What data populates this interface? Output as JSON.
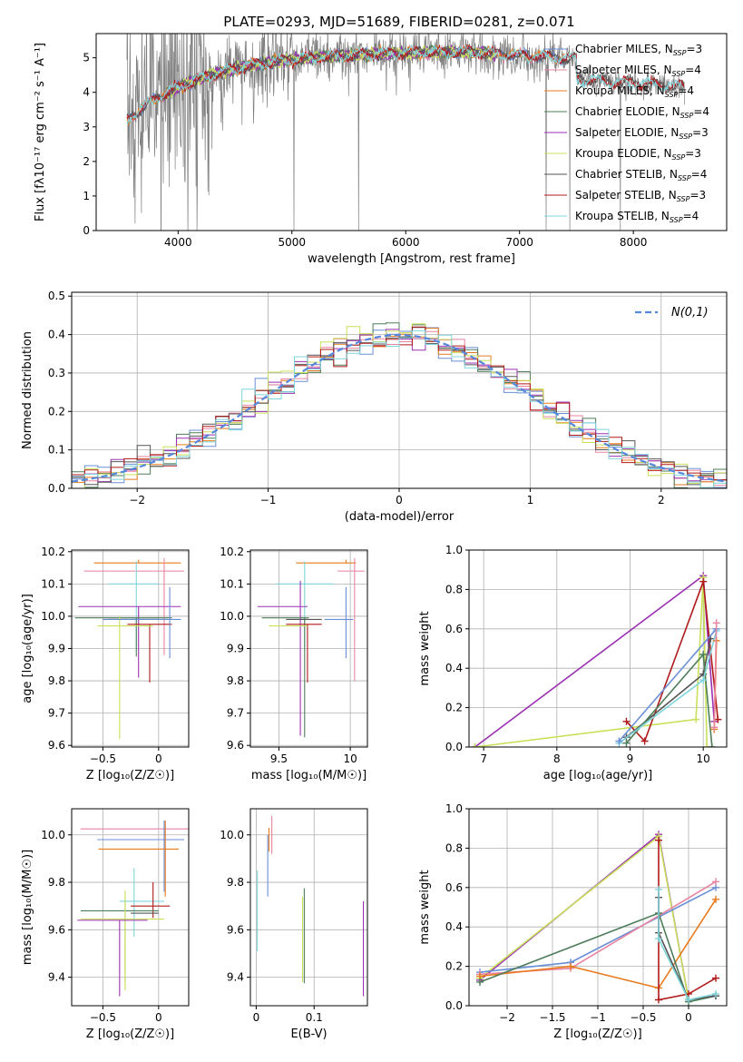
{
  "title": "PLATE=0293, MJD=51689, FIBERID=0281, z=0.071",
  "chart_data": [
    {
      "id": "spectrum",
      "type": "line",
      "title": "PLATE=0293, MJD=51689, FIBERID=0281, z=0.071",
      "xlabel": "wavelength [Angstrom, rest frame]",
      "ylabel": "Flux [f_λ 10^-17 erg cm^-2 s^-1 A^-1]",
      "xlim": [
        3280,
        8820
      ],
      "ylim": [
        0,
        5.7
      ],
      "xticks": [
        4000,
        5000,
        6000,
        7000,
        8000
      ],
      "yticks": [
        0,
        1,
        2,
        3,
        4,
        5
      ],
      "legend_position": "top-right",
      "grid": false,
      "data_series": {
        "name": "data",
        "color": "#808080",
        "x_range": [
          3550,
          8450
        ]
      },
      "series": [
        {
          "name": "Chabrier MILES",
          "nssp": "3",
          "color": "#6a8fd6",
          "x_range": [
            3550,
            7400
          ]
        },
        {
          "name": "Salpeter MILES",
          "nssp": "4",
          "color": "#e8849f",
          "x_range": [
            3550,
            7400
          ]
        },
        {
          "name": "Kroupa MILES",
          "nssp": "4",
          "color": "#e87a1c",
          "x_range": [
            3550,
            7400
          ]
        },
        {
          "name": "Chabrier ELODIE",
          "nssp": "4",
          "color": "#4e7d5a",
          "x_range": [
            3900,
            6800
          ]
        },
        {
          "name": "Salpeter ELODIE",
          "nssp": "3",
          "color": "#9b30b0",
          "x_range": [
            3900,
            6800
          ]
        },
        {
          "name": "Kroupa ELODIE",
          "nssp": "3",
          "color": "#c8e05a",
          "x_range": [
            3900,
            6800
          ]
        },
        {
          "name": "Chabrier STELIB",
          "nssp": "4",
          "color": "#555555",
          "x_range": [
            3550,
            8450
          ]
        },
        {
          "name": "Salpeter STELIB",
          "nssp": "3",
          "color": "#b01a1a",
          "x_range": [
            3550,
            8450
          ]
        },
        {
          "name": "Kroupa STELIB",
          "nssp": "4",
          "color": "#7fd5dc",
          "x_range": [
            3550,
            8450
          ]
        }
      ],
      "legend_nssp_prefix": "N",
      "legend_nssp_sub": "SSP"
    },
    {
      "id": "residuals",
      "type": "line",
      "xlabel": "(data-model)/error",
      "ylabel": "Normed distribution",
      "xlim": [
        -2.5,
        2.5
      ],
      "ylim": [
        0,
        0.51
      ],
      "xticks": [
        -2,
        -1,
        0,
        1,
        2
      ],
      "yticks": [
        0.0,
        0.1,
        0.2,
        0.3,
        0.4,
        0.5
      ],
      "grid": true,
      "legend_position": "top-right",
      "gaussian": {
        "label": "N(0,1)",
        "mean": 0,
        "sigma": 1,
        "color": "#5588dd"
      },
      "histogram_series_colors": [
        "#6a8fd6",
        "#e8849f",
        "#e87a1c",
        "#4e7d5a",
        "#9b30b0",
        "#c8e05a",
        "#555555",
        "#b01a1a",
        "#7fd5dc"
      ]
    },
    {
      "id": "age_vs_Z",
      "type": "scatter",
      "xlabel": "Z [log10(Z/Z☉)]",
      "ylabel": "age [log10(age/yr)]",
      "xlim": [
        -0.78,
        0.27
      ],
      "ylim": [
        9.595,
        10.205
      ],
      "xticks": [
        -0.5,
        0.0
      ],
      "yticks": [
        9.6,
        9.7,
        9.8,
        9.9,
        10.0,
        10.1,
        10.2
      ],
      "grid": true,
      "errorbars": [
        {
          "x": -0.18,
          "y": 10.165,
          "xerr": [
            0.4,
            0.38
          ],
          "yerr": [
            0.0,
            0.01
          ],
          "color": "#e87a1c"
        },
        {
          "x": 0.05,
          "y": 10.14,
          "xerr": [
            0.72,
            0.18
          ],
          "yerr": [
            0.26,
            0.04
          ],
          "color": "#e8849f"
        },
        {
          "x": -0.2,
          "y": 10.1,
          "xerr": [
            0.25,
            0.2
          ],
          "yerr": [
            0.2,
            0.07
          ],
          "color": "#7fd5dc"
        },
        {
          "x": -0.18,
          "y": 10.03,
          "xerr": [
            0.54,
            0.38
          ],
          "yerr": [
            0.22,
            0.0
          ],
          "color": "#9b30b0"
        },
        {
          "x": -0.2,
          "y": 9.995,
          "xerr": [
            0.55,
            0.32
          ],
          "yerr": [
            0.12,
            0.0
          ],
          "color": "#4e7d5a"
        },
        {
          "x": -0.2,
          "y": 9.99,
          "xerr": [
            0.25,
            0.2
          ],
          "yerr": [
            0.0,
            0.0
          ],
          "color": "#555555"
        },
        {
          "x": -0.08,
          "y": 9.975,
          "xerr": [
            0.2,
            0.2
          ],
          "yerr": [
            0.18,
            0.0
          ],
          "color": "#b01a1a"
        },
        {
          "x": -0.35,
          "y": 9.97,
          "xerr": [
            0.2,
            0.3
          ],
          "yerr": [
            0.35,
            0.03
          ],
          "color": "#c8e05a"
        },
        {
          "x": 0.1,
          "y": 9.99,
          "xerr": [
            0.6,
            0.1
          ],
          "yerr": [
            0.12,
            0.1
          ],
          "color": "#6a8fd6"
        }
      ]
    },
    {
      "id": "age_vs_mass",
      "type": "scatter",
      "xlabel": "mass [log10(M/M☉)]",
      "ylabel": "",
      "xlim": [
        9.3,
        10.12
      ],
      "ylim": [
        9.595,
        10.205
      ],
      "xticks": [
        9.5,
        10.0
      ],
      "yticks": [
        9.6,
        9.7,
        9.8,
        9.9,
        10.0,
        10.1,
        10.2
      ],
      "grid": true,
      "errorbars": [
        {
          "x": 9.97,
          "y": 10.165,
          "xerr": [
            0.35,
            0.07
          ],
          "yerr": [
            0.0,
            0.01
          ],
          "color": "#e87a1c"
        },
        {
          "x": 10.03,
          "y": 10.14,
          "xerr": [
            0.12,
            0.07
          ],
          "yerr": [
            0.34,
            0.04
          ],
          "color": "#e8849f"
        },
        {
          "x": 9.68,
          "y": 10.1,
          "xerr": [
            0.2,
            0.2
          ],
          "yerr": [
            0.2,
            0.07
          ],
          "color": "#7fd5dc"
        },
        {
          "x": 9.65,
          "y": 10.03,
          "xerr": [
            0.3,
            0.05
          ],
          "yerr": [
            0.4,
            0.08
          ],
          "color": "#9b30b0"
        },
        {
          "x": 9.68,
          "y": 9.995,
          "xerr": [
            0.3,
            0.03
          ],
          "yerr": [
            0.37,
            0.0
          ],
          "color": "#4e7d5a"
        },
        {
          "x": 9.7,
          "y": 9.99,
          "xerr": [
            0.15,
            0.1
          ],
          "yerr": [
            0.0,
            0.0
          ],
          "color": "#555555"
        },
        {
          "x": 9.7,
          "y": 9.975,
          "xerr": [
            0.15,
            0.1
          ],
          "yerr": [
            0.18,
            0.0
          ],
          "color": "#b01a1a"
        },
        {
          "x": 9.6,
          "y": 9.97,
          "xerr": [
            0.17,
            0.1
          ],
          "yerr": [
            0.0,
            0.0
          ],
          "color": "#c8e05a"
        },
        {
          "x": 9.97,
          "y": 9.99,
          "xerr": [
            0.15,
            0.05
          ],
          "yerr": [
            0.12,
            0.1
          ],
          "color": "#6a8fd6"
        }
      ]
    },
    {
      "id": "weight_vs_age",
      "type": "line",
      "xlabel": "age [log10(age/yr)]",
      "ylabel": "mass weight",
      "xlim": [
        6.8,
        10.32
      ],
      "ylim": [
        0,
        1.0
      ],
      "xticks": [
        7,
        8,
        9,
        10
      ],
      "yticks": [
        0.0,
        0.2,
        0.4,
        0.6,
        0.8,
        1.0
      ],
      "grid": true,
      "series": [
        {
          "name": "Salpeter ELODIE",
          "color": "#9b30b0",
          "x": [
            6.88,
            10.0,
            10.15
          ],
          "y": [
            0.0,
            0.87,
            0.13
          ]
        },
        {
          "name": "Kroupa ELODIE",
          "color": "#c8e05a",
          "x": [
            6.88,
            9.9,
            10.0,
            10.05
          ],
          "y": [
            0.0,
            0.14,
            0.86,
            0.0
          ]
        },
        {
          "name": "Salpeter STELIB",
          "color": "#b01a1a",
          "x": [
            8.95,
            9.2,
            10.0,
            10.2
          ],
          "y": [
            0.13,
            0.03,
            0.84,
            0.14
          ]
        },
        {
          "name": "Chabrier STELIB",
          "color": "#555555",
          "x": [
            8.95,
            10.0,
            10.1
          ],
          "y": [
            0.05,
            0.37,
            0.55
          ]
        },
        {
          "name": "Chabrier ELODIE",
          "color": "#4e7d5a",
          "x": [
            8.95,
            10.0,
            10.12
          ],
          "y": [
            0.02,
            0.47,
            0.0
          ]
        },
        {
          "name": "Kroupa STELIB",
          "color": "#7fd5dc",
          "x": [
            8.85,
            10.0,
            10.18
          ],
          "y": [
            0.02,
            0.34,
            0.59
          ]
        },
        {
          "name": "Chabrier MILES",
          "color": "#6a8fd6",
          "x": [
            8.85,
            10.18
          ],
          "y": [
            0.03,
            0.6
          ]
        },
        {
          "name": "Kroupa MILES",
          "color": "#e87a1c",
          "x": [
            10.15,
            10.18
          ],
          "y": [
            0.09,
            0.54
          ]
        },
        {
          "name": "Salpeter MILES",
          "color": "#e8849f",
          "x": [
            10.15,
            10.18
          ],
          "y": [
            0.1,
            0.63
          ]
        }
      ]
    },
    {
      "id": "mass_vs_Z",
      "type": "scatter",
      "xlabel": "Z [log10(Z/Z☉)]",
      "ylabel": "mass [log10(M/M☉)]",
      "xlim": [
        -0.78,
        0.27
      ],
      "ylim": [
        9.28,
        10.11
      ],
      "xticks": [
        -0.5,
        0.0
      ],
      "yticks": [
        9.4,
        9.6,
        9.8,
        10.0
      ],
      "grid": true,
      "errorbars": [
        {
          "x": -0.25,
          "y": 10.025,
          "xerr": [
            0.45,
            0.52
          ],
          "yerr": [
            0.0,
            0.0
          ],
          "color": "#e8849f"
        },
        {
          "x": 0.05,
          "y": 9.98,
          "xerr": [
            0.6,
            0.18
          ],
          "yerr": [
            0.22,
            0.08
          ],
          "color": "#6a8fd6"
        },
        {
          "x": 0.06,
          "y": 9.94,
          "xerr": [
            0.6,
            0.12
          ],
          "yerr": [
            0.2,
            0.12
          ],
          "color": "#e87a1c"
        },
        {
          "x": -0.22,
          "y": 9.72,
          "xerr": [
            0.13,
            0.27
          ],
          "yerr": [
            0.15,
            0.14
          ],
          "color": "#7fd5dc"
        },
        {
          "x": -0.05,
          "y": 9.7,
          "xerr": [
            0.2,
            0.15
          ],
          "yerr": [
            0.05,
            0.1
          ],
          "color": "#b01a1a"
        },
        {
          "x": -0.3,
          "y": 9.68,
          "xerr": [
            0.4,
            0.3
          ],
          "yerr": [
            0.3,
            0.05
          ],
          "color": "#4e7d5a"
        },
        {
          "x": -0.1,
          "y": 9.67,
          "xerr": [
            0.15,
            0.1
          ],
          "yerr": [
            0.0,
            0.0
          ],
          "color": "#555555"
        },
        {
          "x": -0.3,
          "y": 9.645,
          "xerr": [
            0.4,
            0.35
          ],
          "yerr": [
            0.3,
            0.12
          ],
          "color": "#c8e05a"
        },
        {
          "x": -0.35,
          "y": 9.64,
          "xerr": [
            0.38,
            0.25
          ],
          "yerr": [
            0.32,
            0.0
          ],
          "color": "#9b30b0"
        }
      ]
    },
    {
      "id": "mass_vs_ebv",
      "type": "scatter",
      "xlabel": "E(B-V)",
      "ylabel": "",
      "xlim": [
        -0.01,
        0.192
      ],
      "ylim": [
        9.28,
        10.11
      ],
      "xticks": [
        0.0,
        0.1
      ],
      "yticks": [
        9.4,
        9.6,
        9.8,
        10.0
      ],
      "grid": true,
      "errorbars": [
        {
          "x": 0.027,
          "y": 10.0,
          "xerr": [
            0,
            0
          ],
          "yerr": [
            0.08,
            0.08
          ],
          "color": "#e8849f"
        },
        {
          "x": 0.022,
          "y": 9.98,
          "xerr": [
            0,
            0
          ],
          "yerr": [
            0.05,
            0.05
          ],
          "color": "#e87a1c"
        },
        {
          "x": 0.02,
          "y": 9.87,
          "xerr": [
            0,
            0
          ],
          "yerr": [
            0.13,
            0.13
          ],
          "color": "#6a8fd6"
        },
        {
          "x": 0.002,
          "y": 9.68,
          "xerr": [
            0,
            0
          ],
          "yerr": [
            0.17,
            0.17
          ],
          "color": "#7fd5dc"
        },
        {
          "x": 0.08,
          "y": 9.56,
          "xerr": [
            0,
            0
          ],
          "yerr": [
            0.18,
            0.18
          ],
          "color": "#c8e05a"
        },
        {
          "x": 0.083,
          "y": 9.575,
          "xerr": [
            0,
            0
          ],
          "yerr": [
            0.2,
            0.2
          ],
          "color": "#4e7d5a"
        },
        {
          "x": 0.185,
          "y": 9.52,
          "xerr": [
            0,
            0
          ],
          "yerr": [
            0.2,
            0.2
          ],
          "color": "#9b30b0"
        }
      ]
    },
    {
      "id": "weight_vs_Z",
      "type": "line",
      "xlabel": "Z [log10(Z/Z☉)]",
      "ylabel": "mass weight",
      "xlim": [
        -2.42,
        0.42
      ],
      "ylim": [
        0,
        1.0
      ],
      "xticks": [
        -2.0,
        -1.5,
        -1.0,
        -0.5,
        0.0
      ],
      "yticks": [
        0.0,
        0.2,
        0.4,
        0.6,
        0.8,
        1.0
      ],
      "grid": true,
      "series": [
        {
          "name": "Salpeter ELODIE",
          "color": "#9b30b0",
          "x": [
            -2.3,
            -0.33,
            0.0
          ],
          "y": [
            0.13,
            0.87,
            0.03
          ]
        },
        {
          "name": "Kroupa ELODIE",
          "color": "#c8e05a",
          "x": [
            -2.3,
            -0.33,
            0.0
          ],
          "y": [
            0.14,
            0.86,
            0.03
          ]
        },
        {
          "name": "Chabrier MILES",
          "color": "#6a8fd6",
          "x": [
            -2.3,
            -1.3,
            0.3
          ],
          "y": [
            0.17,
            0.22,
            0.6
          ]
        },
        {
          "name": "Salpeter MILES",
          "color": "#e8849f",
          "x": [
            -2.3,
            -1.3,
            0.3
          ],
          "y": [
            0.16,
            0.19,
            0.63
          ]
        },
        {
          "name": "Kroupa MILES",
          "color": "#e87a1c",
          "x": [
            -2.3,
            -1.3,
            -0.33,
            0.3
          ],
          "y": [
            0.15,
            0.2,
            0.09,
            0.54
          ]
        },
        {
          "name": "Chabrier ELODIE",
          "color": "#4e7d5a",
          "x": [
            -2.3,
            -0.33,
            0.0,
            0.3
          ],
          "y": [
            0.12,
            0.47,
            0.02,
            0.05
          ]
        },
        {
          "name": "Salpeter STELIB",
          "color": "#b01a1a",
          "x": [
            -0.33,
            -0.33,
            0.0,
            0.3
          ],
          "y": [
            0.84,
            0.03,
            0.06,
            0.14
          ]
        },
        {
          "name": "Chabrier STELIB",
          "color": "#555555",
          "x": [
            -0.33,
            -0.33,
            0.0,
            0.3
          ],
          "y": [
            0.55,
            0.37,
            0.03,
            0.05
          ]
        },
        {
          "name": "Kroupa STELIB",
          "color": "#7fd5dc",
          "x": [
            -0.33,
            -0.33,
            0.0,
            0.3
          ],
          "y": [
            0.59,
            0.34,
            0.03,
            0.06
          ]
        }
      ]
    }
  ]
}
